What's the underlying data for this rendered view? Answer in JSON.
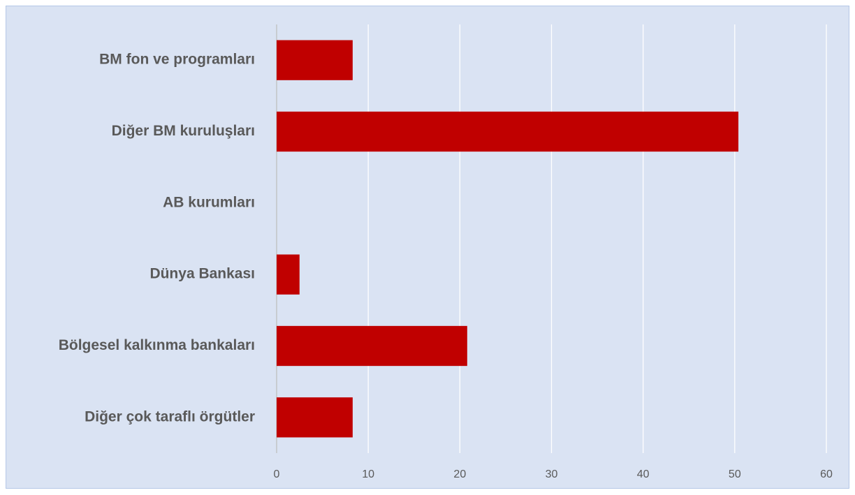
{
  "chart_data": {
    "type": "bar",
    "orientation": "horizontal",
    "categories": [
      "BM fon ve programları",
      "Diğer BM kuruluşları",
      "AB kurumları",
      "Dünya Bankası",
      "Bölgesel kalkınma bankaları",
      "Diğer çok taraflı örgütler"
    ],
    "values": [
      8.3,
      50.4,
      0,
      2.5,
      20.8,
      8.3
    ],
    "color": "#c00000",
    "xlim": [
      0,
      60
    ],
    "xticks": [
      0,
      10,
      20,
      30,
      40,
      50,
      60
    ],
    "grid": true
  }
}
